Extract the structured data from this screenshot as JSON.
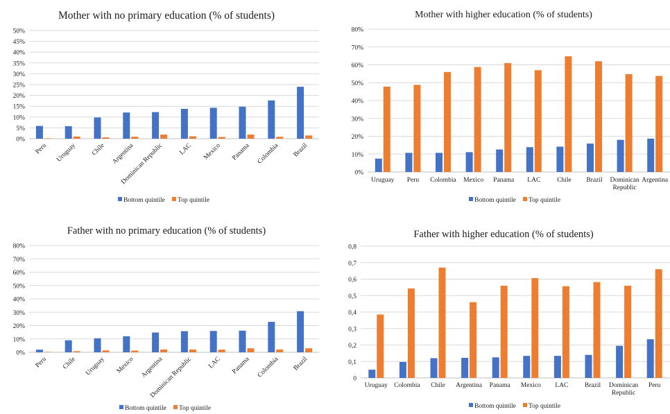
{
  "colors": {
    "bottom": "#4472C4",
    "top": "#ED7D31",
    "grid": "#D9D9D9",
    "axis": "#BFBFBF"
  },
  "chart_data": [
    {
      "type": "bar",
      "title": "Mother with no primary education (% of students)",
      "categories": [
        "Peru",
        "Uruguay",
        "Chile",
        "Argentina",
        "Dominican Republic",
        "LAC",
        "Mexico",
        "Panama",
        "Colombia",
        "Brazil"
      ],
      "series": [
        {
          "name": "Bottom quintile",
          "values": [
            5.9,
            5.8,
            9.8,
            12.1,
            12.3,
            13.8,
            14.3,
            14.8,
            17.7,
            24
          ]
        },
        {
          "name": "Top quintile",
          "values": [
            0.2,
            1.0,
            0.6,
            0.9,
            1.9,
            1.1,
            0.8,
            1.9,
            0.9,
            1.5
          ]
        }
      ],
      "yticks": [
        "0%",
        "5%",
        "10%",
        "15%",
        "20%",
        "25%",
        "30%",
        "35%",
        "40%",
        "45%",
        "50%"
      ],
      "ylim": [
        0,
        50
      ],
      "xlabel_style": "rotated",
      "grid": true,
      "legend": "bottom"
    },
    {
      "type": "bar",
      "title": "Mother with higher education (% of students)",
      "categories": [
        "Uruguay",
        "Peru",
        "Colombia",
        "Mexico",
        "Panama",
        "LAC",
        "Chile",
        "Brazil",
        "Dominican Republic",
        "Argentina"
      ],
      "series": [
        {
          "name": "Bottom quintile",
          "values": [
            7.5,
            10.7,
            10.7,
            11.1,
            12.6,
            13.9,
            14.2,
            15.9,
            18.0,
            18.7
          ]
        },
        {
          "name": "Top quintile",
          "values": [
            47.8,
            48.8,
            56.0,
            58.8,
            61.0,
            57.0,
            64.8,
            62.0,
            54.8,
            53.8
          ]
        }
      ],
      "yticks": [
        "0%",
        "10%",
        "20%",
        "30%",
        "40%",
        "50%",
        "60%",
        "70%",
        "80%"
      ],
      "ylim": [
        0,
        80
      ],
      "xlabel_style": "horizontal",
      "grid": true,
      "legend": "bottom"
    },
    {
      "type": "bar",
      "title": "Father with no primary education (% of students)",
      "categories": [
        "Peru",
        "Chile",
        "Uruguay",
        "Mexico",
        "Argentina",
        "Dominican Republic",
        "LAC",
        "Panama",
        "Colombia",
        "Brazil"
      ],
      "series": [
        {
          "name": "Bottom quintile",
          "values": [
            2.0,
            9.0,
            10.5,
            12.0,
            14.8,
            15.8,
            16.0,
            16.2,
            22.8,
            30.8
          ]
        },
        {
          "name": "Top quintile",
          "values": [
            0.3,
            0.8,
            1.4,
            1.3,
            2.1,
            2.1,
            2.0,
            3.0,
            2.1,
            3.0
          ]
        }
      ],
      "yticks": [
        "0%",
        "10%",
        "20%",
        "30%",
        "40%",
        "50%",
        "60%",
        "70%",
        "80%"
      ],
      "ylim": [
        0,
        80
      ],
      "xlabel_style": "rotated",
      "grid": true,
      "legend": "bottom"
    },
    {
      "type": "bar",
      "title": "Father with higher education (% of students)",
      "categories": [
        "Uruguay",
        "Colombia",
        "Chile",
        "Argentina",
        "Panama",
        "Mexico",
        "LAC",
        "Brazil",
        "Dominican Republic",
        "Peru"
      ],
      "series": [
        {
          "name": "Bottom quintile",
          "values": [
            0.05,
            0.097,
            0.12,
            0.122,
            0.125,
            0.134,
            0.134,
            0.14,
            0.195,
            0.235
          ]
        },
        {
          "name": "Top quintile",
          "values": [
            0.385,
            0.543,
            0.67,
            0.46,
            0.56,
            0.606,
            0.557,
            0.582,
            0.56,
            0.66
          ]
        }
      ],
      "yticks": [
        "0",
        "0,1",
        "0,2",
        "0,3",
        "0,4",
        "0,5",
        "0,6",
        "0,7",
        "0,8"
      ],
      "ylim": [
        0,
        0.8
      ],
      "xlabel_style": "horizontal",
      "grid": true,
      "legend": "bottom"
    }
  ]
}
